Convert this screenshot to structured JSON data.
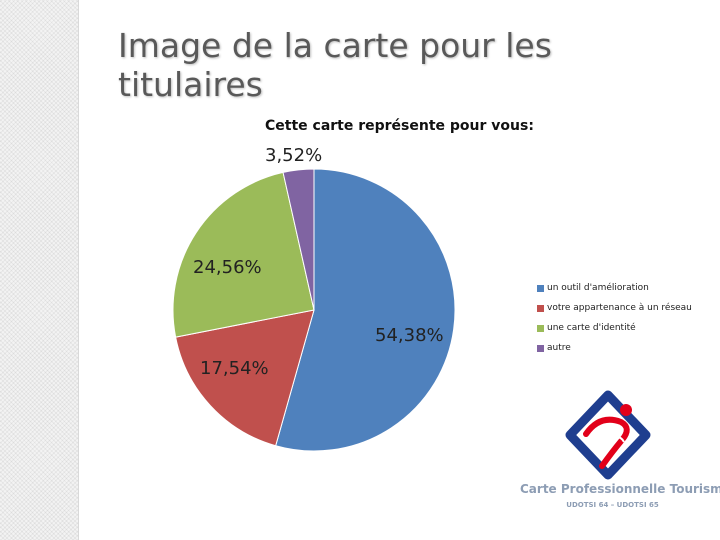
{
  "slide": {
    "title": "Image de la carte pour les titulaires"
  },
  "chart_data": {
    "type": "pie",
    "title": "Cette carte représente pour vous:",
    "categories": [
      "un outil d'amélioration",
      "votre appartenance à un réseau",
      "une carte d'identité",
      "autre"
    ],
    "values": [
      54.38,
      17.54,
      24.56,
      3.52
    ],
    "labels": [
      "54,38%",
      "17,54%",
      "24,56%",
      "3,52%"
    ],
    "colors": [
      "#4f81bd",
      "#c0504d",
      "#9bbb59",
      "#8064a2"
    ],
    "legend_position": "right"
  },
  "logo": {
    "text": "Carte Professionnelle Tourisme",
    "subtext": "UDOTSI 64 – UDOTSI 65",
    "colors": {
      "blue": "#1f3e8f",
      "red": "#e2001a",
      "text": "#8d9db4"
    }
  }
}
